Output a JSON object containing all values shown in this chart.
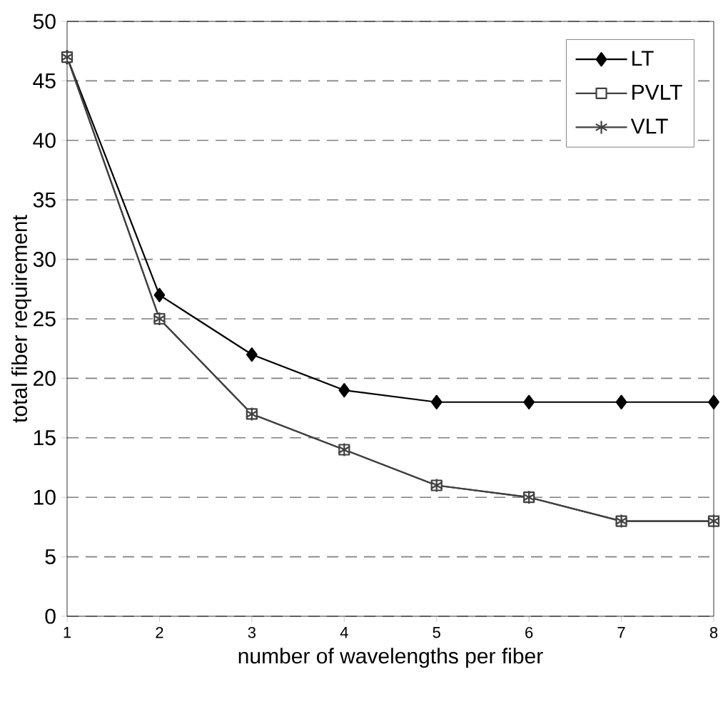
{
  "chart_data": {
    "type": "line",
    "xlabel": "number of wavelengths per fiber",
    "ylabel": "total fiber requirement",
    "x": [
      1,
      2,
      3,
      4,
      5,
      6,
      7,
      8
    ],
    "series": [
      {
        "name": "LT",
        "color": "#000000",
        "marker": "diamond",
        "values": [
          47,
          27,
          22,
          19,
          18,
          18,
          18,
          18
        ]
      },
      {
        "name": "PVLT",
        "color": "#404040",
        "marker": "square",
        "values": [
          47,
          25,
          17,
          14,
          11,
          10,
          8,
          8
        ]
      },
      {
        "name": "VLT",
        "color": "#404040",
        "marker": "cross",
        "values": [
          47,
          25,
          17,
          14,
          11,
          10,
          8,
          8
        ]
      }
    ],
    "xlim": [
      1,
      8
    ],
    "xticks": [
      1,
      2,
      3,
      4,
      5,
      6,
      7,
      8
    ],
    "ylim": [
      0,
      50
    ],
    "yticks": [
      0,
      5,
      10,
      15,
      20,
      25,
      30,
      35,
      40,
      45,
      50
    ],
    "grid": "y",
    "legend": "top right",
    "line_style": "solid"
  }
}
